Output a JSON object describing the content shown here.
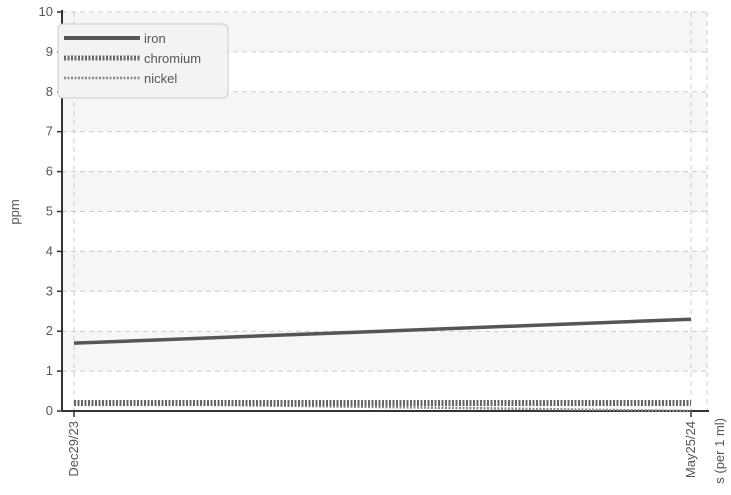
{
  "chart_data": {
    "type": "line",
    "x": [
      "Dec29/23",
      "May25/24"
    ],
    "series": [
      {
        "name": "iron",
        "values": [
          1.7,
          2.3
        ],
        "color": "#555555",
        "style": "solid"
      },
      {
        "name": "chromium",
        "values": [
          0.2,
          0.2
        ],
        "color": "#666666",
        "style": "dotted"
      },
      {
        "name": "nickel",
        "values": [
          0.2,
          0.0
        ],
        "color": "#888888",
        "style": "dotted"
      }
    ],
    "yticks": [
      "0",
      "1",
      "2",
      "3",
      "4",
      "5",
      "6",
      "7",
      "8",
      "9",
      "10"
    ],
    "ylabel": "ppm",
    "secondary_ylabel": "s (per 1 ml)",
    "ylim": [
      0,
      10
    ],
    "grid": true,
    "legend_position": "top-left"
  }
}
